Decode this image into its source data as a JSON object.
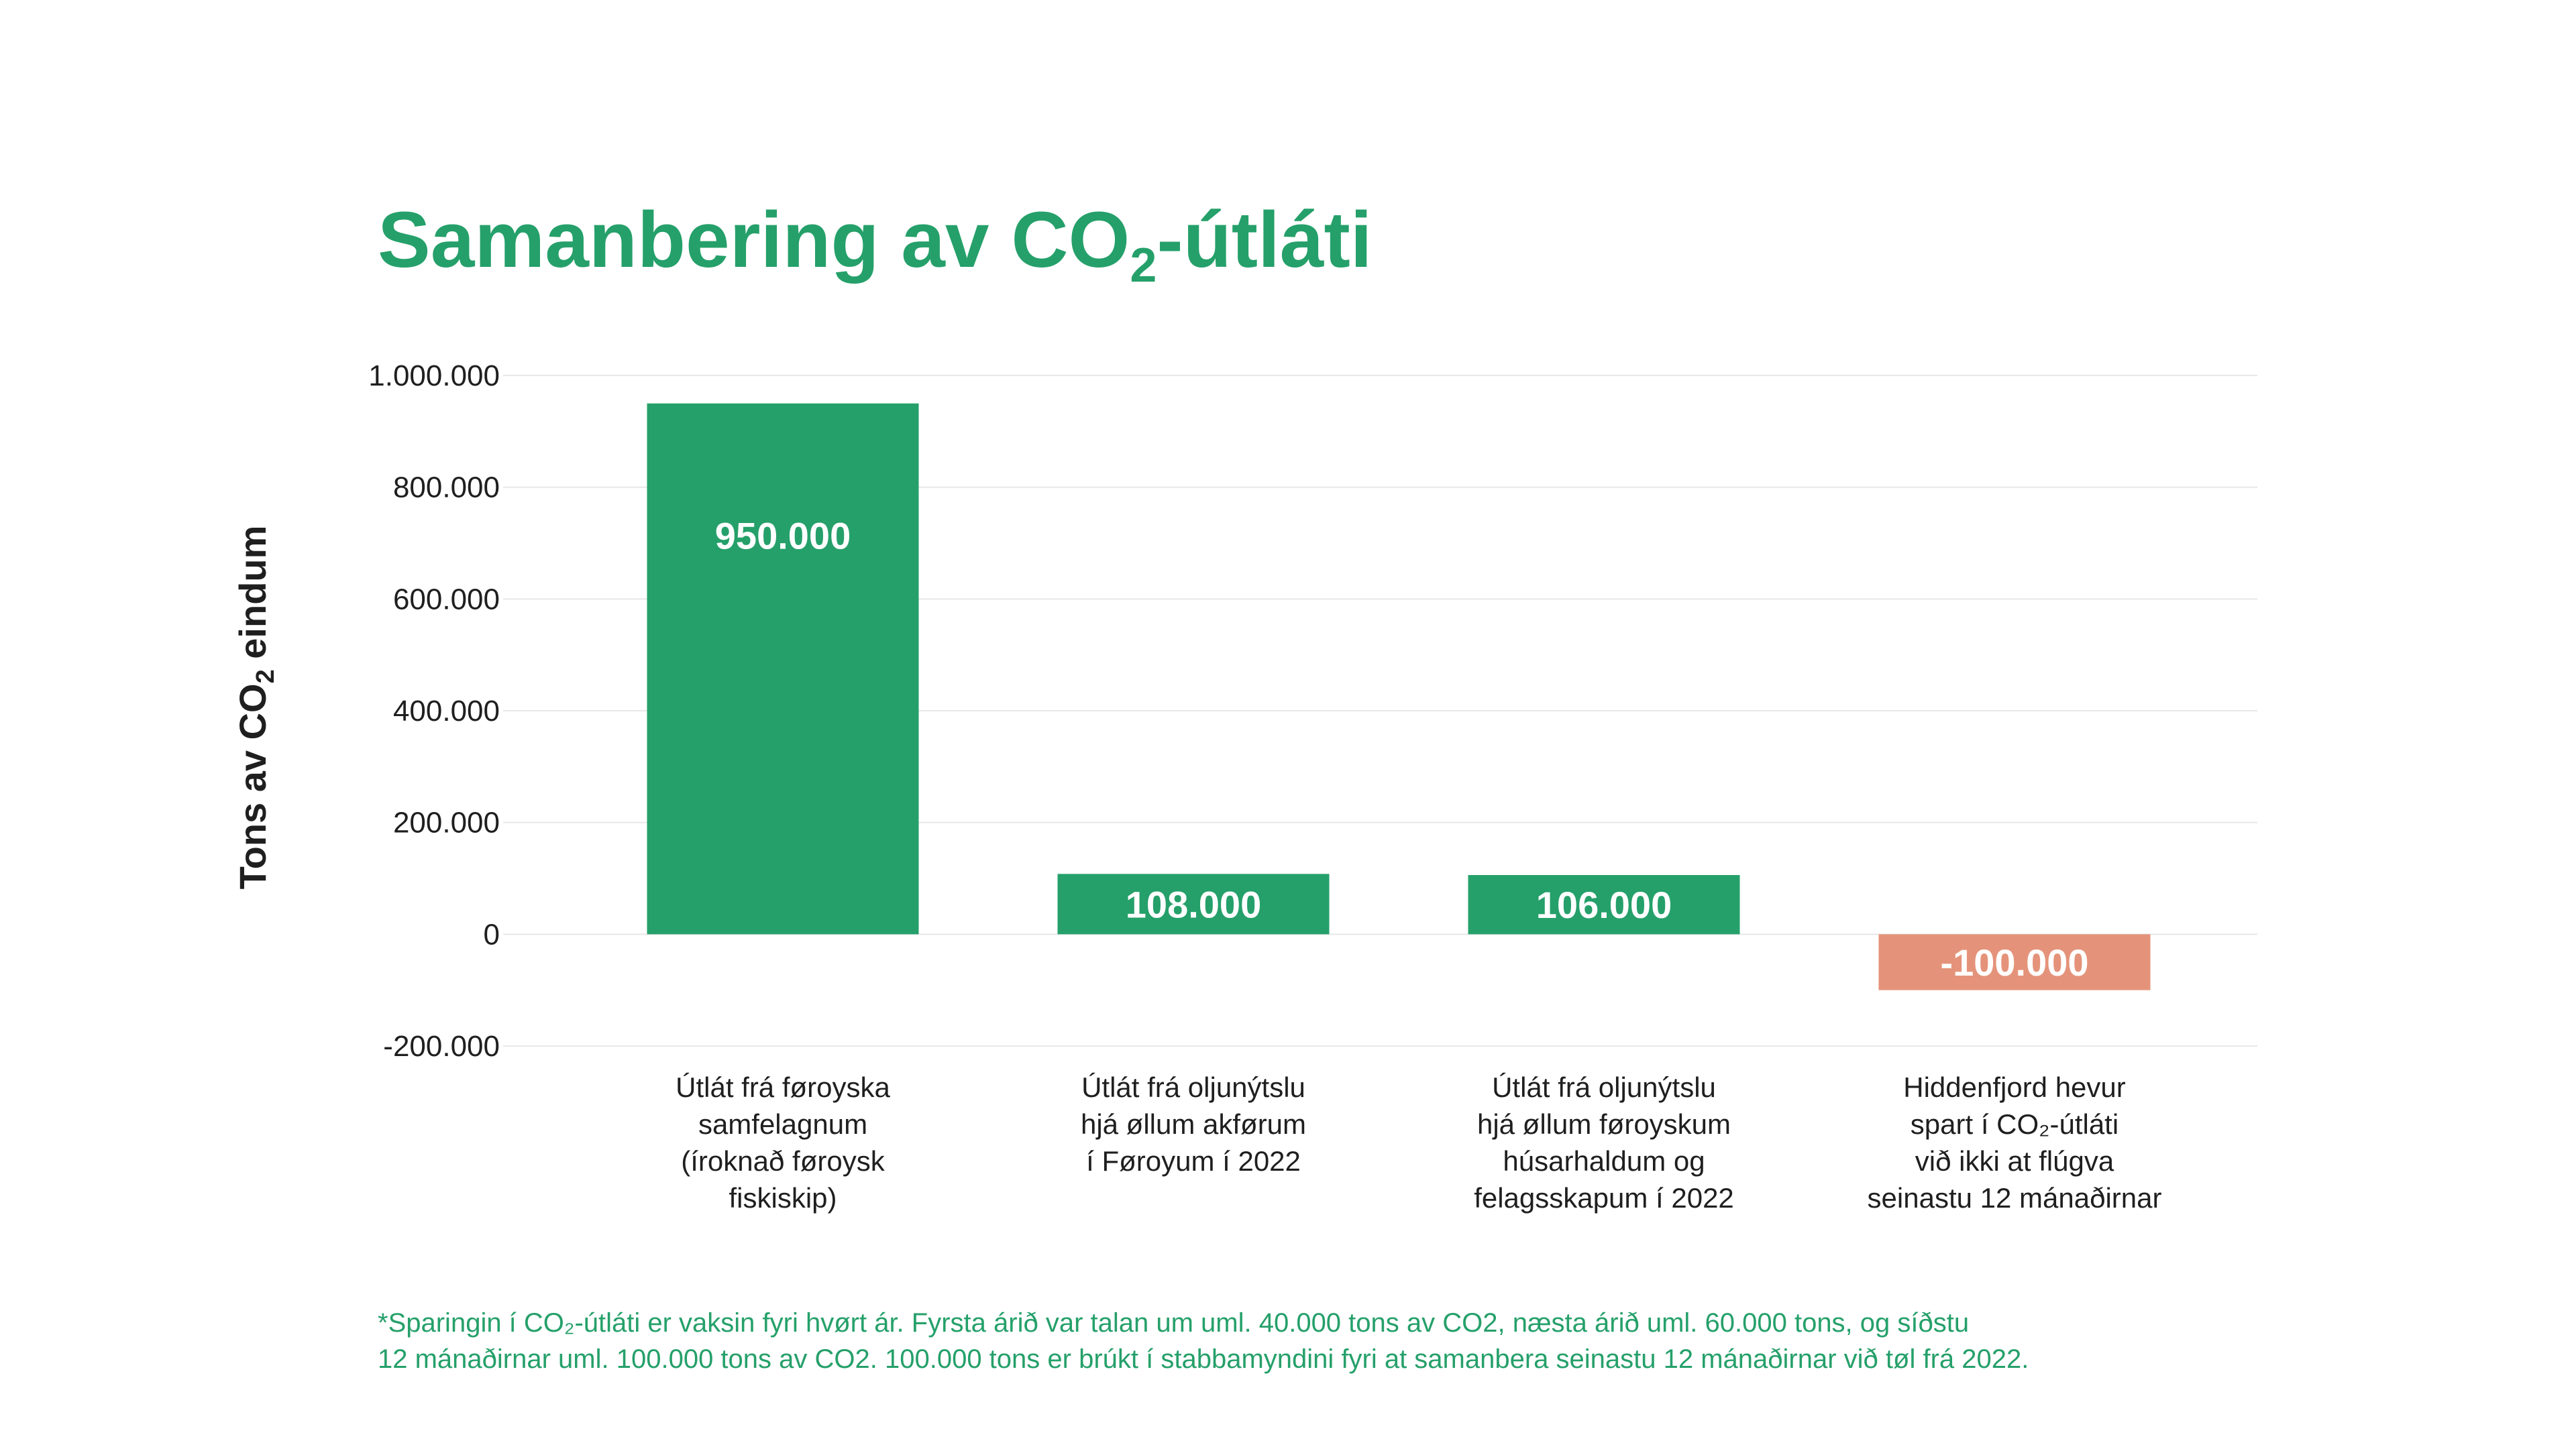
{
  "colors": {
    "accent": "#25a06a",
    "negative": "#e4937a",
    "text": "#1f1f1f",
    "grid": "#e8e8e8",
    "bar_label": "#ffffff"
  },
  "chart_data": {
    "type": "bar",
    "title": "Samanbering av CO₂-útláti",
    "title_parts": {
      "pre": "Samanbering av CO",
      "sub": "2",
      "post": "-útláti"
    },
    "ylabel": "Tons av CO₂ eindum",
    "ylabel_parts": {
      "pre": "Tons av CO",
      "sub": "2",
      "post": " eindum"
    },
    "xlabel": "",
    "ylim": [
      -200000,
      1000000
    ],
    "yticks": [
      -200000,
      0,
      200000,
      400000,
      600000,
      800000,
      1000000
    ],
    "ytick_labels": [
      "-200.000",
      "0",
      "200.000",
      "400.000",
      "600.000",
      "800.000",
      "1.000.000"
    ],
    "grid": true,
    "legend": "none",
    "categories": [
      "Útlát frá føroyska samfelagnum (íroknað føroysk fiskiskip)",
      "Útlát frá oljunýtslu hjá øllum akførum í Føroyum í 2022",
      "Útlát frá oljunýtslu hjá øllum føroyskum húsarhaldum og felagsskapum í 2022",
      "Hiddenfjord hevur spart í CO₂-útláti við ikki at flúgva seinastu 12 mánaðirnar"
    ],
    "category_lines": [
      [
        "Útlát frá føroyska",
        "samfelagnum",
        "(íroknað føroysk",
        "fiskiskip)"
      ],
      [
        "Útlát frá oljunýtslu",
        "hjá øllum akførum",
        "í Føroyum í 2022"
      ],
      [
        "Útlát frá oljunýtslu",
        "hjá øllum føroyskum",
        "húsarhaldum og",
        "felagsskapum í 2022"
      ],
      [
        "Hiddenfjord hevur",
        "spart í CO₂-útláti",
        "við ikki at flúgva",
        "seinastu 12 mánaðirnar"
      ]
    ],
    "values": [
      950000,
      108000,
      106000,
      -100000
    ],
    "value_labels": [
      "950.000",
      "108.000",
      "106.000",
      "-100.000"
    ],
    "bar_colors": [
      "#25a06a",
      "#25a06a",
      "#25a06a",
      "#e4937a"
    ]
  },
  "footnote": {
    "line1": "*Sparingin í CO₂-útláti er vaksin fyri hvørt ár. Fyrsta árið var talan um uml. 40.000 tons av CO2, næsta árið uml. 60.000 tons, og síðstu",
    "line2": "12 mánaðirnar uml. 100.000 tons av CO2. 100.000 tons er brúkt í stabbamyndini fyri at samanbera seinastu 12 mánaðirnar við tøl frá 2022."
  }
}
